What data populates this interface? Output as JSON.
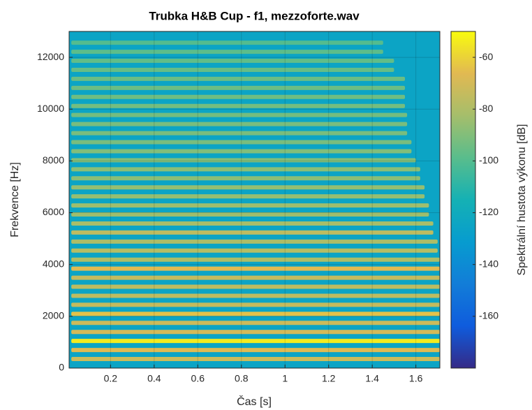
{
  "chart_data": {
    "type": "spectrogram",
    "title": "Trubka H&B Cup - f1, mezzoforte.wav",
    "x_label": "Čas [s]",
    "y_label": "Frekvence [Hz]",
    "colorbar_label": "Spektrální hustota výkonu [dB]",
    "xlim": [
      0.01,
      1.71
    ],
    "ylim": [
      0,
      13000
    ],
    "xticks": [
      0.2,
      0.4,
      0.6,
      0.8,
      1,
      1.2,
      1.4,
      1.6
    ],
    "yticks": [
      0,
      2000,
      4000,
      6000,
      8000,
      10000,
      12000
    ],
    "clim": [
      -180,
      -50
    ],
    "cticks": [
      -60,
      -80,
      -100,
      -120,
      -140,
      -160
    ],
    "grid": true,
    "colormap": [
      "#352a87",
      "#0f5cdd",
      "#127dd8",
      "#079ccf",
      "#15b1b4",
      "#59bd8c",
      "#a5be6b",
      "#e1b952",
      "#f9fb0e"
    ],
    "background_db": -125,
    "harmonics_start_s": 0.02,
    "harmonics_hz": [
      349,
      698,
      1047,
      1396,
      1745,
      2094,
      2443,
      2792,
      3141,
      3490,
      3839,
      4188,
      4537,
      4886,
      5235,
      5584,
      5933,
      6282,
      6631,
      6980,
      7329,
      7678,
      8027,
      8376,
      8725,
      9074,
      9423,
      9772,
      10121,
      10470,
      10819,
      11168,
      11517,
      11866,
      12215,
      12564
    ],
    "harmonics_db": [
      -72,
      -66,
      -54,
      -70,
      -72,
      -64,
      -74,
      -76,
      -76,
      -74,
      -66,
      -80,
      -78,
      -80,
      -76,
      -82,
      -84,
      -84,
      -86,
      -86,
      -88,
      -88,
      -90,
      -90,
      -92,
      -92,
      -92,
      -93,
      -93,
      -94,
      -95,
      -95,
      -96,
      -97,
      -98,
      -100
    ],
    "harmonics_end_s": [
      1.71,
      1.71,
      1.71,
      1.71,
      1.71,
      1.71,
      1.71,
      1.71,
      1.71,
      1.71,
      1.71,
      1.71,
      1.7,
      1.7,
      1.68,
      1.68,
      1.66,
      1.66,
      1.64,
      1.64,
      1.62,
      1.62,
      1.6,
      1.58,
      1.58,
      1.56,
      1.56,
      1.56,
      1.55,
      1.55,
      1.55,
      1.55,
      1.5,
      1.5,
      1.45,
      1.45
    ]
  }
}
